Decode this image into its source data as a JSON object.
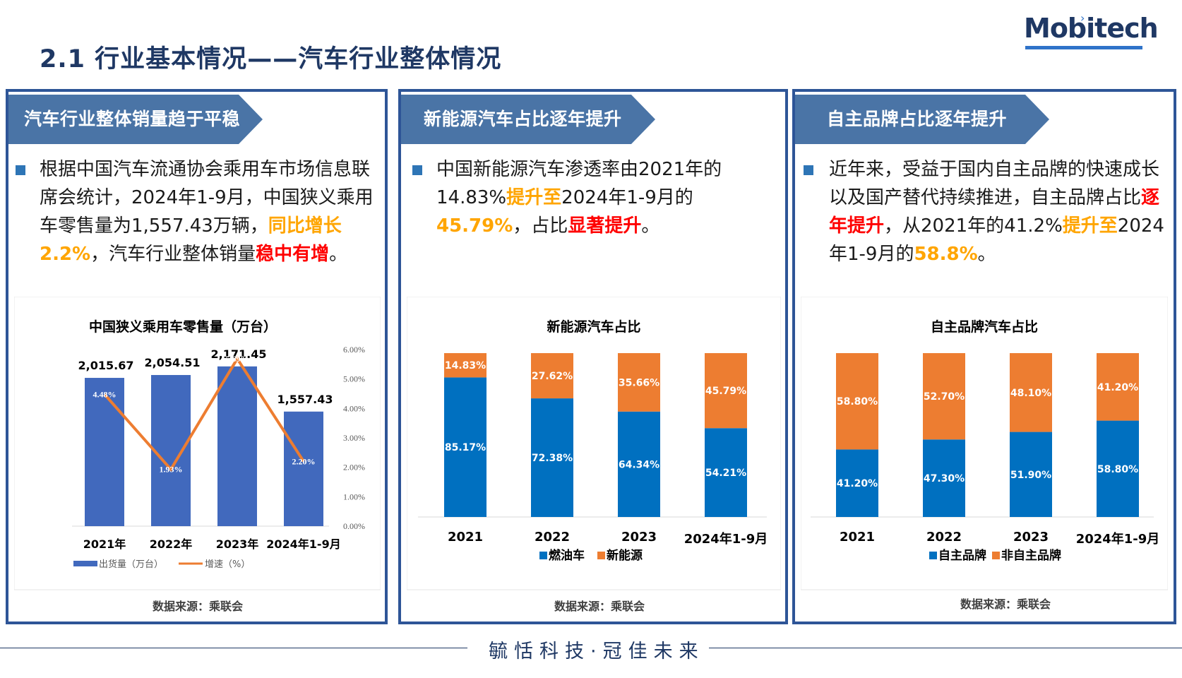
{
  "page": {
    "title": "2.1 行业基本情况——汽车行业整体情况",
    "logo": "Mobitech",
    "footer": "毓恬科技·冠佳未来"
  },
  "panels": [
    {
      "banner": "汽车行业整体销量趋于平稳",
      "segments": [
        {
          "t": "根据中国汽车流通协会乘用车市场信息联席会统计，2024年1-9月，中国狭义乘用车零售量为1,557.43万辆，",
          "s": "n"
        },
        {
          "t": "同比增长2.2%",
          "s": "o"
        },
        {
          "t": "，汽车行业整体销量",
          "s": "n"
        },
        {
          "t": "稳中有增",
          "s": "r"
        },
        {
          "t": "。",
          "s": "n"
        }
      ],
      "source": "数据来源：乘联会"
    },
    {
      "banner": "新能源汽车占比逐年提升",
      "segments": [
        {
          "t": "中国新能源汽车渗透率由2021年的14.83%",
          "s": "n"
        },
        {
          "t": "提升至",
          "s": "o"
        },
        {
          "t": "2024年1-9月的",
          "s": "n"
        },
        {
          "t": "45.79%",
          "s": "o"
        },
        {
          "t": "，占比",
          "s": "n"
        },
        {
          "t": "显著提升",
          "s": "r"
        },
        {
          "t": "。",
          "s": "n"
        }
      ],
      "source": "数据来源：乘联会"
    },
    {
      "banner": "自主品牌占比逐年提升",
      "segments": [
        {
          "t": "近年来，受益于国内自主品牌的快速成长以及国产替代持续推进，自主品牌占比",
          "s": "n"
        },
        {
          "t": "逐年提升",
          "s": "r"
        },
        {
          "t": "，从2021年的41.2%",
          "s": "n"
        },
        {
          "t": "提升至",
          "s": "o"
        },
        {
          "t": "2024年1-9月的",
          "s": "n"
        },
        {
          "t": "58.8%",
          "s": "o"
        },
        {
          "t": "。",
          "s": "n"
        }
      ],
      "source": "数据来源：乘联会"
    }
  ],
  "colors": {
    "navy": "#2E5597",
    "banner": "#4A74A6",
    "blue_bar": "#4169BD",
    "orange_line": "#ED7D31",
    "stack_blue": "#0070C0",
    "stack_orange": "#ED7D31",
    "highlight_orange": "#FFA500",
    "highlight_red": "#FF0000"
  },
  "chart_data": [
    {
      "type": "bar",
      "title": "中国狭义乘用车零售量（万台）",
      "categories": [
        "2021年",
        "2022年",
        "2023年",
        "2024年1-9月"
      ],
      "series": [
        {
          "name": "出货量（万台）",
          "type": "bar",
          "values": [
            2015.67,
            2054.51,
            2171.45,
            1557.43
          ],
          "labels": [
            "2,015.67",
            "2,054.51",
            "2,171.45",
            "1,557.43"
          ]
        },
        {
          "name": "增速（%）",
          "type": "line",
          "axis": "right",
          "values": [
            4.48,
            1.93,
            5.69,
            2.2
          ],
          "labels": [
            "4.48%",
            "1.93%",
            "5.69%",
            "2.20%"
          ]
        }
      ],
      "ylim": [
        0,
        2400
      ],
      "y2lim": [
        0,
        6
      ],
      "y2_ticks": [
        "0.00%",
        "1.00%",
        "2.00%",
        "3.00%",
        "4.00%",
        "5.00%",
        "6.00%"
      ],
      "legend": "bottom"
    },
    {
      "type": "bar",
      "stacked": true,
      "title": "新能源汽车占比",
      "categories": [
        "2021",
        "2022",
        "2023",
        "2024年1-9月"
      ],
      "series": [
        {
          "name": "燃油车",
          "values": [
            85.17,
            72.38,
            64.34,
            54.21
          ],
          "labels": [
            "85.17%",
            "72.38%",
            "64.34%",
            "54.21%"
          ]
        },
        {
          "name": "新能源",
          "values": [
            14.83,
            27.62,
            35.66,
            45.79
          ],
          "labels": [
            "14.83%",
            "27.62%",
            "35.66%",
            "45.79%"
          ]
        }
      ],
      "ylim": [
        0,
        100
      ],
      "legend": "bottom"
    },
    {
      "type": "bar",
      "stacked": true,
      "title": "自主品牌汽车占比",
      "categories": [
        "2021",
        "2022",
        "2023",
        "2024年1-9月"
      ],
      "series": [
        {
          "name": "自主品牌",
          "values": [
            41.2,
            47.3,
            51.9,
            58.8
          ],
          "labels": [
            "41.20%",
            "47.30%",
            "51.90%",
            "58.80%"
          ]
        },
        {
          "name": "非自主品牌",
          "values": [
            58.8,
            52.7,
            48.1,
            41.2
          ],
          "labels": [
            "58.80%",
            "52.70%",
            "48.10%",
            "41.20%"
          ]
        }
      ],
      "ylim": [
        0,
        100
      ],
      "legend": "bottom"
    }
  ]
}
